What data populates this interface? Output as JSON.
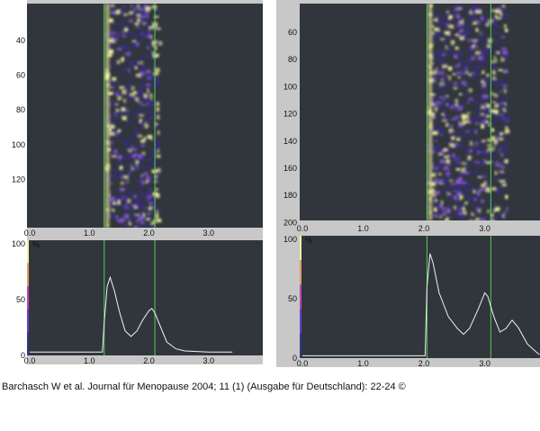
{
  "caption": "Barchasch W et al. Journal für Menopause 2004; 11 (1) (Ausgabe für Deutschland): 22-24 ©",
  "colors": {
    "panel_bg": "#c8c8c8",
    "plot_bg": "#30363c",
    "marker_line": "#4fd14f",
    "trace": "#f2f2f2",
    "speckle_low": "#3a2a8c",
    "speckle_mid": "#8a5ad8",
    "speckle_high": "#f6f0a0"
  },
  "left_figure": {
    "image_y_ticks": [
      "40",
      "60",
      "80",
      "100",
      "120"
    ],
    "image_x_ticks": [
      "0.0",
      "1.0",
      "2.0",
      "3.0"
    ],
    "profile_y_ticks": [
      "100",
      "50",
      "0"
    ],
    "profile_y_unit": "%",
    "profile_x_ticks": [
      "0.0",
      "1.0",
      "2.0",
      "3.0"
    ],
    "markers": [
      1.25,
      2.1
    ],
    "profile_points": [
      [
        0,
        3
      ],
      [
        1.22,
        3
      ],
      [
        1.25,
        30
      ],
      [
        1.3,
        62
      ],
      [
        1.35,
        70
      ],
      [
        1.42,
        58
      ],
      [
        1.5,
        40
      ],
      [
        1.6,
        22
      ],
      [
        1.7,
        17
      ],
      [
        1.8,
        22
      ],
      [
        1.9,
        32
      ],
      [
        2.0,
        40
      ],
      [
        2.05,
        42
      ],
      [
        2.1,
        38
      ],
      [
        2.2,
        25
      ],
      [
        2.3,
        12
      ],
      [
        2.45,
        6
      ],
      [
        2.6,
        4
      ],
      [
        3.0,
        3
      ],
      [
        3.4,
        3
      ]
    ]
  },
  "right_figure": {
    "image_y_ticks": [
      "60",
      "80",
      "100",
      "120",
      "140",
      "160",
      "180",
      "200"
    ],
    "image_x_ticks": [
      "0.0",
      "1.0",
      "2.0",
      "3.0"
    ],
    "profile_y_ticks": [
      "100",
      "50",
      "0"
    ],
    "profile_y_unit": "%",
    "profile_x_ticks": [
      "0.0",
      "1.0",
      "2.0",
      "3.0"
    ],
    "markers": [
      2.05,
      3.1
    ],
    "profile_points": [
      [
        0,
        2
      ],
      [
        2.02,
        2
      ],
      [
        2.05,
        60
      ],
      [
        2.1,
        88
      ],
      [
        2.15,
        80
      ],
      [
        2.25,
        55
      ],
      [
        2.4,
        35
      ],
      [
        2.55,
        25
      ],
      [
        2.65,
        20
      ],
      [
        2.75,
        25
      ],
      [
        2.9,
        42
      ],
      [
        3.0,
        55
      ],
      [
        3.05,
        52
      ],
      [
        3.15,
        35
      ],
      [
        3.25,
        22
      ],
      [
        3.35,
        25
      ],
      [
        3.45,
        32
      ],
      [
        3.55,
        26
      ],
      [
        3.7,
        12
      ],
      [
        3.85,
        5
      ],
      [
        3.9,
        3
      ]
    ]
  }
}
